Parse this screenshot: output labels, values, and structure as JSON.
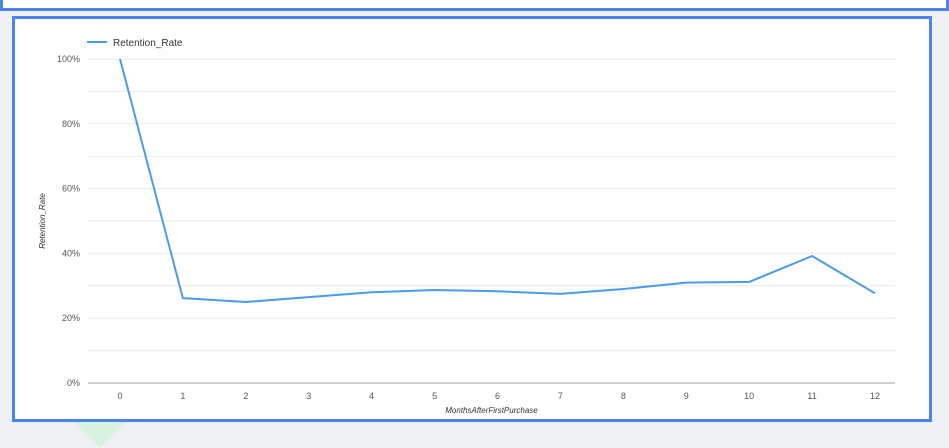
{
  "chart_data": {
    "type": "line",
    "title": "",
    "xlabel": "MonthsAfterFirstPurchase",
    "ylabel": "Retention_Rate",
    "x": [
      0,
      1,
      2,
      3,
      4,
      5,
      6,
      7,
      8,
      9,
      10,
      11,
      12
    ],
    "x_tick_labels": [
      "0",
      "1",
      "2",
      "3",
      "4",
      "5",
      "6",
      "7",
      "8",
      "9",
      "10",
      "11",
      "12"
    ],
    "y_tick_labels": [
      "0%",
      "20%",
      "40%",
      "60%",
      "80%",
      "100%"
    ],
    "y_ticks": [
      0,
      20,
      40,
      60,
      80,
      100
    ],
    "ylim": [
      0,
      100
    ],
    "grid": true,
    "legend_position": "top-left",
    "series": [
      {
        "name": "Retention_Rate",
        "color": "#4a9be8",
        "values": [
          100,
          26.2,
          25,
          26.5,
          28,
          28.7,
          28.3,
          27.5,
          29,
          31,
          31.2,
          39.2,
          27.7
        ]
      }
    ]
  },
  "colors": {
    "panel_border": "#4a86e8",
    "grid": "#e9e9e9",
    "axis": "#9e9e9e"
  }
}
